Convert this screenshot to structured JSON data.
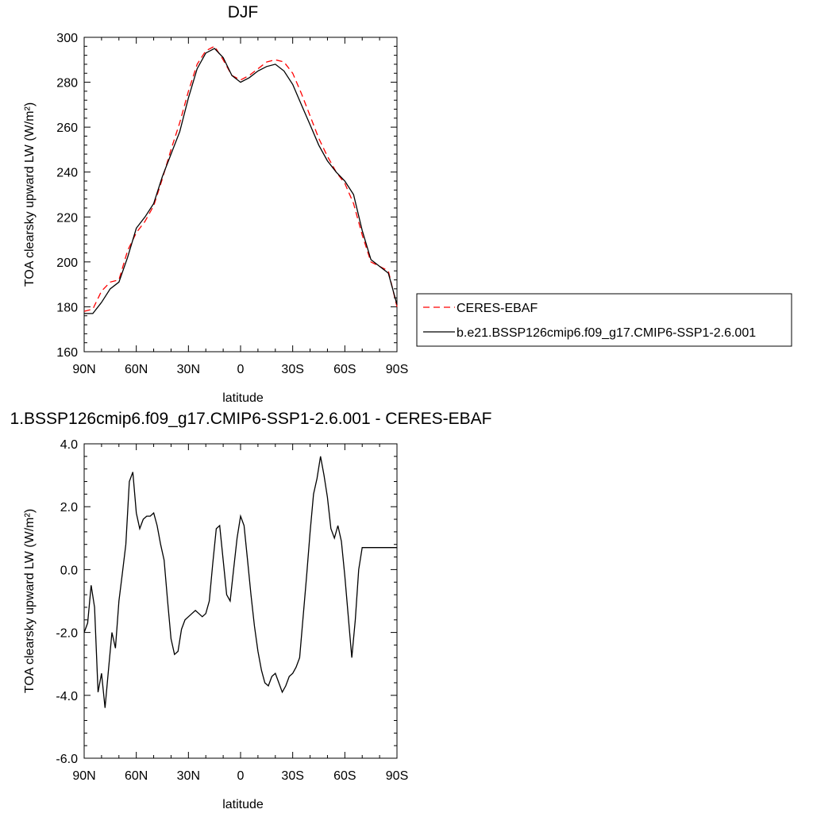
{
  "chart_data": [
    {
      "type": "line",
      "title": "DJF",
      "xlabel": "latitude",
      "ylabel": "TOA clearsky upward LW (W/m²)",
      "xlim": [
        -90,
        90
      ],
      "ylim": [
        160,
        300
      ],
      "x_ticks": [
        -90,
        -60,
        -30,
        0,
        30,
        60,
        90
      ],
      "x_tick_labels": [
        "90N",
        "60N",
        "30N",
        "0",
        "30S",
        "60S",
        "90S"
      ],
      "y_ticks": [
        160,
        180,
        200,
        220,
        240,
        260,
        280,
        300
      ],
      "y_tick_labels": [
        "160",
        "180",
        "200",
        "220",
        "240",
        "260",
        "280",
        "300"
      ],
      "grid": false,
      "legend_position": "right",
      "series": [
        {
          "name": "CERES-EBAF",
          "color": "#ff0000",
          "style": "dashed",
          "x": [
            -90,
            -85,
            -80,
            -75,
            -70,
            -65,
            -60,
            -55,
            -50,
            -45,
            -40,
            -35,
            -30,
            -25,
            -20,
            -15,
            -10,
            -5,
            0,
            5,
            10,
            15,
            20,
            25,
            30,
            35,
            40,
            45,
            50,
            55,
            60,
            65,
            70,
            75,
            80,
            85,
            90
          ],
          "y": [
            178,
            179,
            187,
            191,
            192,
            205,
            213,
            218,
            225,
            237,
            250,
            262,
            276,
            288,
            294,
            296,
            290,
            283,
            281,
            283,
            286,
            289,
            290,
            289,
            284,
            275,
            265,
            255,
            247,
            240,
            235,
            226,
            212,
            200,
            198,
            196,
            180
          ]
        },
        {
          "name": "b.e21.BSSP126cmip6.f09_g17.CMIP6-SSP1-2.6.001",
          "color": "#000000",
          "style": "solid",
          "x": [
            -90,
            -85,
            -80,
            -75,
            -70,
            -65,
            -60,
            -55,
            -50,
            -45,
            -40,
            -35,
            -30,
            -25,
            -20,
            -15,
            -10,
            -5,
            0,
            5,
            10,
            15,
            20,
            25,
            30,
            35,
            40,
            45,
            50,
            55,
            60,
            65,
            70,
            75,
            80,
            85,
            90
          ],
          "y": [
            177,
            177,
            182,
            188,
            191,
            202,
            215,
            220,
            226,
            238,
            248,
            258,
            273,
            286,
            293,
            295,
            291,
            283,
            280,
            282,
            285,
            287,
            288,
            285,
            279,
            270,
            261,
            252,
            245,
            240,
            236,
            230,
            214,
            201,
            198,
            195,
            181
          ]
        }
      ]
    },
    {
      "type": "line",
      "title": "1.BSSP126cmip6.f09_g17.CMIP6-SSP1-2.6.001 - CERES-EBAF",
      "xlabel": "latitude",
      "ylabel": "TOA clearsky upward LW (W/m²)",
      "xlim": [
        -90,
        90
      ],
      "ylim": [
        -6,
        4
      ],
      "x_ticks": [
        -90,
        -60,
        -30,
        0,
        30,
        60,
        90
      ],
      "x_tick_labels": [
        "90N",
        "60N",
        "30N",
        "0",
        "30S",
        "60S",
        "90S"
      ],
      "y_ticks": [
        -6,
        -4,
        -2,
        0,
        2,
        4
      ],
      "y_tick_labels": [
        "-6.0",
        "-4.0",
        "-2.0",
        "0.0",
        "2.0",
        "4.0"
      ],
      "grid": false,
      "series": [
        {
          "color": "#000000",
          "style": "solid",
          "x": [
            -90,
            -88,
            -86,
            -84,
            -82,
            -80,
            -78,
            -76,
            -74,
            -72,
            -70,
            -68,
            -66,
            -64,
            -62,
            -60,
            -58,
            -56,
            -54,
            -52,
            -50,
            -48,
            -46,
            -44,
            -42,
            -40,
            -38,
            -36,
            -34,
            -32,
            -30,
            -28,
            -26,
            -24,
            -22,
            -20,
            -18,
            -16,
            -14,
            -12,
            -10,
            -8,
            -6,
            -4,
            -2,
            0,
            2,
            4,
            6,
            8,
            10,
            12,
            14,
            16,
            18,
            20,
            22,
            24,
            26,
            28,
            30,
            32,
            34,
            36,
            38,
            40,
            42,
            44,
            46,
            48,
            50,
            52,
            54,
            56,
            58,
            60,
            62,
            64,
            66,
            68,
            70,
            72,
            74,
            76,
            78,
            80,
            82,
            84,
            86,
            88,
            90
          ],
          "y": [
            -2.0,
            -1.7,
            -0.5,
            -1.2,
            -3.9,
            -3.3,
            -4.4,
            -3.2,
            -2.0,
            -2.5,
            -1.0,
            -0.1,
            0.8,
            2.8,
            3.1,
            1.8,
            1.3,
            1.6,
            1.7,
            1.7,
            1.8,
            1.4,
            0.8,
            0.3,
            -1.0,
            -2.2,
            -2.7,
            -2.6,
            -1.9,
            -1.6,
            -1.5,
            -1.4,
            -1.3,
            -1.4,
            -1.5,
            -1.4,
            -1.0,
            0.2,
            1.3,
            1.4,
            0.3,
            -0.8,
            -1.0,
            0.0,
            1.0,
            1.7,
            1.4,
            0.3,
            -0.8,
            -1.8,
            -2.6,
            -3.2,
            -3.6,
            -3.7,
            -3.4,
            -3.3,
            -3.6,
            -3.9,
            -3.7,
            -3.4,
            -3.3,
            -3.1,
            -2.8,
            -1.5,
            -0.2,
            1.2,
            2.4,
            2.9,
            3.6,
            3.0,
            2.3,
            1.3,
            1.0,
            1.4,
            0.9,
            -0.2,
            -1.5,
            -2.8,
            -1.6,
            0.0,
            0.7,
            0.7,
            0.7,
            0.7,
            0.7,
            0.7,
            0.7,
            0.7,
            0.7,
            0.7,
            0.7
          ]
        }
      ]
    }
  ]
}
